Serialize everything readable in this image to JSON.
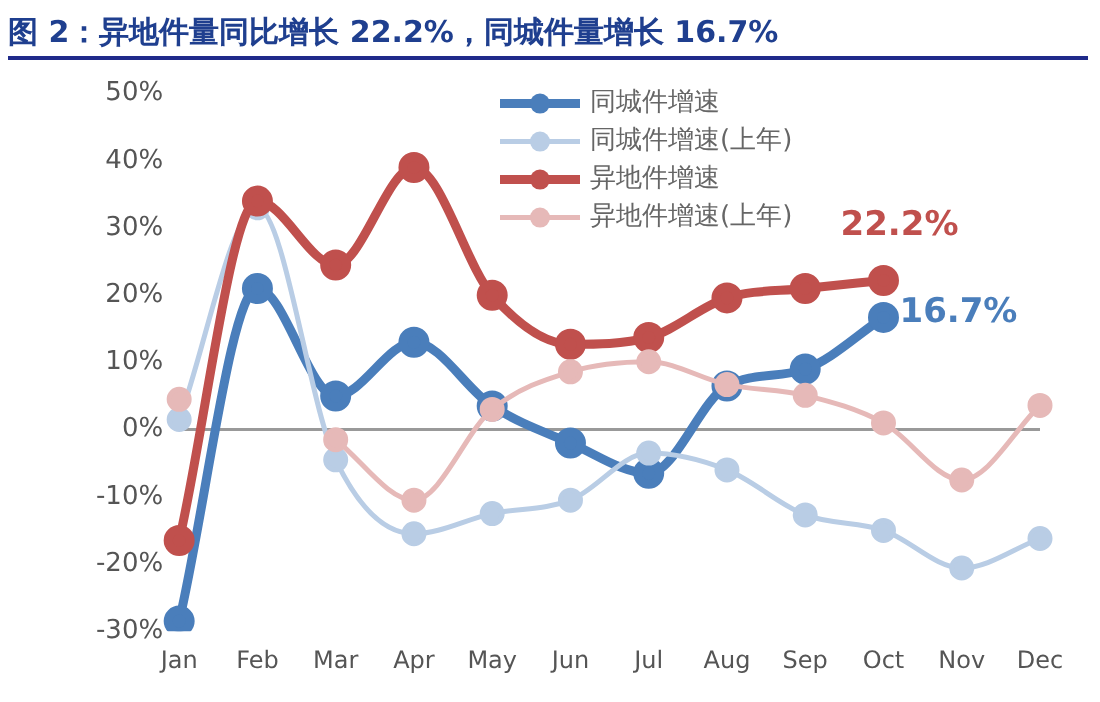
{
  "chart_data": {
    "type": "line",
    "title": "图 2：异地件量同比增长 22.2%，同城件量增长 16.7%",
    "categories": [
      "Jan",
      "Feb",
      "Mar",
      "Apr",
      "May",
      "Jun",
      "Jul",
      "Aug",
      "Sep",
      "Oct",
      "Nov",
      "Dec"
    ],
    "series": [
      {
        "name": "同城件增速",
        "color": "#4a7ebb",
        "values": [
          -28.5,
          21,
          5,
          13,
          3.5,
          -2,
          -6.5,
          6.5,
          9,
          16.7,
          null,
          null
        ]
      },
      {
        "name": "同城件增速(上年)",
        "color": "#b9cde5",
        "values": [
          1.5,
          33,
          -4.5,
          -15.5,
          -12.5,
          -10.5,
          -3.5,
          -6,
          -12.7,
          -15,
          -20.6,
          -16.2
        ]
      },
      {
        "name": "异地件增速",
        "color": "#c0504d",
        "values": [
          -16.5,
          34,
          24.5,
          39,
          20,
          12.7,
          13.7,
          19.6,
          21,
          22.2,
          null,
          null
        ]
      },
      {
        "name": "异地件增速(上年)",
        "color": "#e6b9b8",
        "values": [
          4.5,
          null,
          -1.5,
          -10.5,
          3,
          8.6,
          10.1,
          6.7,
          5.1,
          1,
          -7.5,
          3.6
        ]
      }
    ],
    "ylim": [
      -30,
      50
    ],
    "yticks": [
      {
        "value": -30,
        "label": "-30%"
      },
      {
        "value": -20,
        "label": "-20%"
      },
      {
        "value": -10,
        "label": "-10%"
      },
      {
        "value": 0,
        "label": "0%"
      },
      {
        "value": 10,
        "label": "10%"
      },
      {
        "value": 20,
        "label": "20%"
      },
      {
        "value": 30,
        "label": "30%"
      },
      {
        "value": 40,
        "label": "40%"
      },
      {
        "value": 50,
        "label": "50%"
      }
    ],
    "grid": false,
    "ref_lines": [
      {
        "axis": "y",
        "value": 0,
        "color": "#999999"
      }
    ],
    "legend": "top right",
    "marker": "circle",
    "line_style": "solid",
    "annotations": [
      {
        "text": "22.2%",
        "x": "Oct",
        "y": 22.2
      },
      {
        "text": "16.7%",
        "x": "Oct",
        "y": 16.7
      }
    ]
  }
}
